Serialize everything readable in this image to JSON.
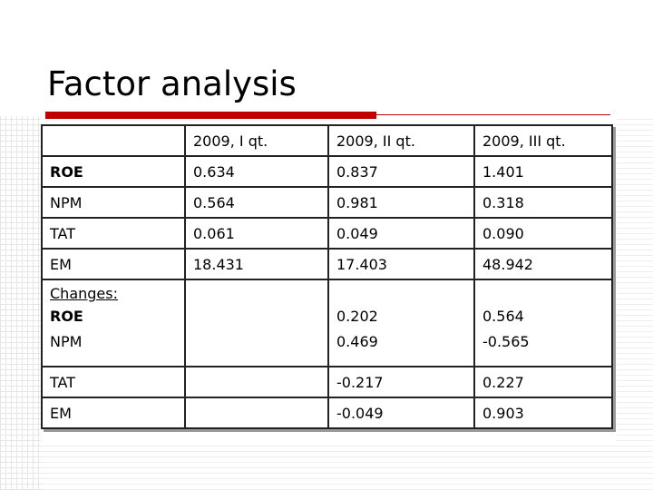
{
  "title": "Factor analysis",
  "table": {
    "header": [
      "2009, I qt.",
      "2009, II qt.",
      "2009, III qt."
    ],
    "rows": [
      {
        "label": "ROE",
        "values": [
          "0.634",
          "0.837",
          "1.401"
        ]
      },
      {
        "label": "NPM",
        "values": [
          "0.564",
          "0.981",
          "0.318"
        ]
      },
      {
        "label": "TAT",
        "values": [
          "0.061",
          "0.049",
          "0.090"
        ]
      },
      {
        "label": "EM",
        "values": [
          "18.431",
          "17.403",
          "48.942"
        ]
      }
    ],
    "changes": {
      "heading": "Changes:",
      "rows": [
        {
          "label": "ROE",
          "values": [
            "0.202",
            "0.564"
          ]
        },
        {
          "label": "NPM",
          "values": [
            "0.469",
            "-0.565"
          ]
        }
      ]
    },
    "change_rows": [
      {
        "label": "TAT",
        "values": [
          "-0.217",
          "0.227"
        ]
      },
      {
        "label": "EM",
        "values": [
          "-0.049",
          "0.903"
        ]
      }
    ]
  }
}
